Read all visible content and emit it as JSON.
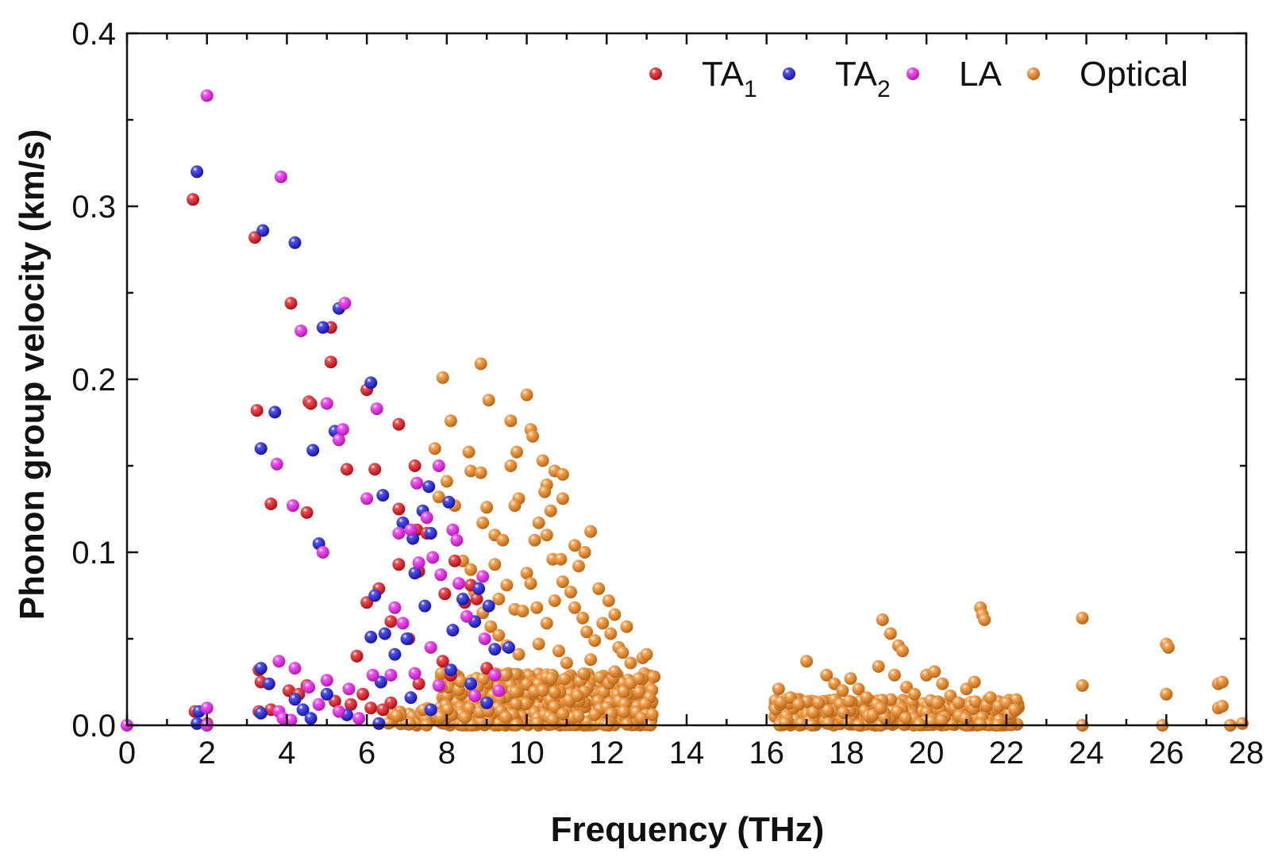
{
  "chart_data": {
    "type": "scatter",
    "title": "",
    "xlabel": "Frequency (THz)",
    "ylabel": "Phonon group velocity (km/s)",
    "xlim": [
      0,
      28
    ],
    "ylim": [
      0,
      0.4
    ],
    "x_ticks": [
      "0",
      "2",
      "4",
      "6",
      "8",
      "10",
      "12",
      "14",
      "16",
      "18",
      "20",
      "22",
      "24",
      "26",
      "28"
    ],
    "y_ticks": [
      "0.0",
      "0.1",
      "0.2",
      "0.3",
      "0.4"
    ],
    "legend_position": "top-right",
    "series": [
      {
        "name": "TA1",
        "label_main": "TA",
        "label_sub": "1",
        "color": "#e8141c",
        "points": [
          [
            1.65,
            0.304
          ],
          [
            1.7,
            0.008
          ],
          [
            3.2,
            0.282
          ],
          [
            3.25,
            0.182
          ],
          [
            3.3,
            0.032
          ],
          [
            3.35,
            0.025
          ],
          [
            3.3,
            0.008
          ],
          [
            3.6,
            0.128
          ],
          [
            4.1,
            0.244
          ],
          [
            4.5,
            0.123
          ],
          [
            4.55,
            0.187
          ],
          [
            4.6,
            0.186
          ],
          [
            5.1,
            0.23
          ],
          [
            5.1,
            0.21
          ],
          [
            5.5,
            0.148
          ],
          [
            5.75,
            0.04
          ],
          [
            6.0,
            0.194
          ],
          [
            6.0,
            0.071
          ],
          [
            6.2,
            0.148
          ],
          [
            6.3,
            0.079
          ],
          [
            6.6,
            0.06
          ],
          [
            6.8,
            0.174
          ],
          [
            6.8,
            0.093
          ],
          [
            6.8,
            0.125
          ],
          [
            7.05,
            0.05
          ],
          [
            7.2,
            0.15
          ],
          [
            7.25,
            0.113
          ],
          [
            7.3,
            0.089
          ],
          [
            7.5,
            0.111
          ],
          [
            7.9,
            0.037
          ],
          [
            7.95,
            0.076
          ],
          [
            8.2,
            0.095
          ],
          [
            8.45,
            0.071
          ],
          [
            8.6,
            0.081
          ],
          [
            8.75,
            0.073
          ],
          [
            9.0,
            0.033
          ],
          [
            4.05,
            0.02
          ],
          [
            4.5,
            0.023
          ],
          [
            5.2,
            0.014
          ],
          [
            5.6,
            0.012
          ],
          [
            6.1,
            0.01
          ],
          [
            6.6,
            0.013
          ],
          [
            7.3,
            0.024
          ],
          [
            8.1,
            0.029
          ],
          [
            2.0,
            0.001
          ],
          [
            3.6,
            0.009
          ],
          [
            4.3,
            0.018
          ],
          [
            5.9,
            0.018
          ],
          [
            6.4,
            0.009
          ]
        ]
      },
      {
        "name": "TA2",
        "label_main": "TA",
        "label_sub": "2",
        "color": "#1a1ae0",
        "points": [
          [
            1.75,
            0.32
          ],
          [
            1.8,
            0.008
          ],
          [
            1.75,
            0.001
          ],
          [
            3.35,
            0.16
          ],
          [
            3.4,
            0.286
          ],
          [
            3.35,
            0.007
          ],
          [
            3.35,
            0.033
          ],
          [
            3.7,
            0.181
          ],
          [
            4.2,
            0.279
          ],
          [
            4.2,
            0.015
          ],
          [
            4.65,
            0.159
          ],
          [
            4.8,
            0.105
          ],
          [
            4.9,
            0.23
          ],
          [
            5.2,
            0.17
          ],
          [
            5.3,
            0.241
          ],
          [
            6.1,
            0.198
          ],
          [
            6.1,
            0.051
          ],
          [
            6.2,
            0.075
          ],
          [
            6.4,
            0.133
          ],
          [
            6.45,
            0.053
          ],
          [
            6.7,
            0.041
          ],
          [
            6.9,
            0.117
          ],
          [
            7.0,
            0.05
          ],
          [
            7.15,
            0.108
          ],
          [
            7.2,
            0.088
          ],
          [
            7.4,
            0.124
          ],
          [
            7.45,
            0.069
          ],
          [
            7.55,
            0.138
          ],
          [
            7.6,
            0.111
          ],
          [
            8.05,
            0.129
          ],
          [
            8.15,
            0.055
          ],
          [
            8.1,
            0.032
          ],
          [
            8.4,
            0.073
          ],
          [
            8.7,
            0.06
          ],
          [
            8.8,
            0.079
          ],
          [
            9.05,
            0.069
          ],
          [
            9.2,
            0.044
          ],
          [
            9.55,
            0.045
          ],
          [
            3.55,
            0.024
          ],
          [
            4.4,
            0.009
          ],
          [
            5.0,
            0.018
          ],
          [
            5.5,
            0.006
          ],
          [
            6.35,
            0.025
          ],
          [
            7.1,
            0.016
          ],
          [
            7.6,
            0.009
          ],
          [
            8.6,
            0.024
          ],
          [
            9.0,
            0.013
          ],
          [
            4.6,
            0.004
          ],
          [
            6.3,
            0.001
          ]
        ]
      },
      {
        "name": "LA",
        "label_main": "LA",
        "label_sub": "",
        "color": "#f020f0",
        "points": [
          [
            0.0,
            0.0
          ],
          [
            2.0,
            0.364
          ],
          [
            2.0,
            0.01
          ],
          [
            2.0,
            0.0
          ],
          [
            3.75,
            0.151
          ],
          [
            3.8,
            0.037
          ],
          [
            3.85,
            0.317
          ],
          [
            3.8,
            0.008
          ],
          [
            4.15,
            0.127
          ],
          [
            4.2,
            0.033
          ],
          [
            4.35,
            0.228
          ],
          [
            4.55,
            0.022
          ],
          [
            4.9,
            0.1
          ],
          [
            5.0,
            0.186
          ],
          [
            5.0,
            0.026
          ],
          [
            5.3,
            0.165
          ],
          [
            5.4,
            0.171
          ],
          [
            5.45,
            0.244
          ],
          [
            5.55,
            0.021
          ],
          [
            6.0,
            0.131
          ],
          [
            6.25,
            0.183
          ],
          [
            6.15,
            0.029
          ],
          [
            6.7,
            0.068
          ],
          [
            6.8,
            0.111
          ],
          [
            6.9,
            0.059
          ],
          [
            7.1,
            0.113
          ],
          [
            7.25,
            0.14
          ],
          [
            7.3,
            0.094
          ],
          [
            7.5,
            0.12
          ],
          [
            7.6,
            0.045
          ],
          [
            7.65,
            0.097
          ],
          [
            7.8,
            0.15
          ],
          [
            7.85,
            0.087
          ],
          [
            8.15,
            0.113
          ],
          [
            8.25,
            0.107
          ],
          [
            8.3,
            0.082
          ],
          [
            8.5,
            0.063
          ],
          [
            8.9,
            0.086
          ],
          [
            8.95,
            0.05
          ],
          [
            9.2,
            0.029
          ],
          [
            3.9,
            0.004
          ],
          [
            4.8,
            0.012
          ],
          [
            5.8,
            0.004
          ],
          [
            6.6,
            0.029
          ],
          [
            7.2,
            0.03
          ],
          [
            7.8,
            0.023
          ],
          [
            8.7,
            0.017
          ],
          [
            9.3,
            0.02
          ],
          [
            4.1,
            0.003
          ],
          [
            5.3,
            0.008
          ]
        ]
      },
      {
        "name": "Optical",
        "label_main": "Optical",
        "label_sub": "",
        "color": "#f5891e",
        "points": [
          [
            7.9,
            0.201
          ],
          [
            8.1,
            0.176
          ],
          [
            7.7,
            0.16
          ],
          [
            7.8,
            0.132
          ],
          [
            8.0,
            0.141
          ],
          [
            8.2,
            0.127
          ],
          [
            8.55,
            0.158
          ],
          [
            8.6,
            0.147
          ],
          [
            8.85,
            0.209
          ],
          [
            9.05,
            0.188
          ],
          [
            8.85,
            0.146
          ],
          [
            9.0,
            0.126
          ],
          [
            9.2,
            0.11
          ],
          [
            8.9,
            0.117
          ],
          [
            9.6,
            0.176
          ],
          [
            9.75,
            0.158
          ],
          [
            9.6,
            0.15
          ],
          [
            9.8,
            0.131
          ],
          [
            9.7,
            0.127
          ],
          [
            10.0,
            0.191
          ],
          [
            10.1,
            0.171
          ],
          [
            10.15,
            0.167
          ],
          [
            10.4,
            0.153
          ],
          [
            10.5,
            0.139
          ],
          [
            10.45,
            0.135
          ],
          [
            10.7,
            0.147
          ],
          [
            10.9,
            0.145
          ],
          [
            10.9,
            0.131
          ],
          [
            10.6,
            0.124
          ],
          [
            10.3,
            0.117
          ],
          [
            10.2,
            0.107
          ],
          [
            10.5,
            0.11
          ],
          [
            10.65,
            0.096
          ],
          [
            10.85,
            0.096
          ],
          [
            11.2,
            0.104
          ],
          [
            11.45,
            0.1
          ],
          [
            11.6,
            0.112
          ],
          [
            11.3,
            0.092
          ],
          [
            11.8,
            0.079
          ],
          [
            12.05,
            0.072
          ],
          [
            12.2,
            0.064
          ],
          [
            12.5,
            0.057
          ],
          [
            12.3,
            0.045
          ],
          [
            12.9,
            0.039
          ],
          [
            13.0,
            0.041
          ],
          [
            9.4,
            0.107
          ],
          [
            9.2,
            0.093
          ],
          [
            9.5,
            0.081
          ],
          [
            9.3,
            0.073
          ],
          [
            9.7,
            0.067
          ],
          [
            9.9,
            0.066
          ],
          [
            10.0,
            0.088
          ],
          [
            10.1,
            0.082
          ],
          [
            10.25,
            0.068
          ],
          [
            10.5,
            0.059
          ],
          [
            10.7,
            0.072
          ],
          [
            10.9,
            0.083
          ],
          [
            11.1,
            0.077
          ],
          [
            11.2,
            0.068
          ],
          [
            11.4,
            0.062
          ],
          [
            11.5,
            0.054
          ],
          [
            11.7,
            0.049
          ],
          [
            11.9,
            0.059
          ],
          [
            12.1,
            0.053
          ],
          [
            12.4,
            0.042
          ],
          [
            12.6,
            0.036
          ],
          [
            8.4,
            0.095
          ],
          [
            8.6,
            0.09
          ],
          [
            8.7,
            0.077
          ],
          [
            8.9,
            0.065
          ],
          [
            9.1,
            0.057
          ],
          [
            9.3,
            0.052
          ],
          [
            9.5,
            0.046
          ],
          [
            9.8,
            0.041
          ],
          [
            10.3,
            0.047
          ],
          [
            10.8,
            0.043
          ],
          [
            11.0,
            0.036
          ],
          [
            11.6,
            0.038
          ],
          [
            12.2,
            0.031
          ],
          [
            12.8,
            0.027
          ],
          [
            16.3,
            0.021
          ],
          [
            16.6,
            0.016
          ],
          [
            16.8,
            0.012
          ],
          [
            17.0,
            0.037
          ],
          [
            17.3,
            0.013
          ],
          [
            17.5,
            0.029
          ],
          [
            17.7,
            0.024
          ],
          [
            17.9,
            0.02
          ],
          [
            18.1,
            0.027
          ],
          [
            18.3,
            0.021
          ],
          [
            18.5,
            0.016
          ],
          [
            18.8,
            0.034
          ],
          [
            18.9,
            0.061
          ],
          [
            19.1,
            0.053
          ],
          [
            19.3,
            0.046
          ],
          [
            19.4,
            0.043
          ],
          [
            19.2,
            0.029
          ],
          [
            19.5,
            0.022
          ],
          [
            19.7,
            0.018
          ],
          [
            20.0,
            0.029
          ],
          [
            20.2,
            0.031
          ],
          [
            20.4,
            0.024
          ],
          [
            20.6,
            0.017
          ],
          [
            20.8,
            0.013
          ],
          [
            21.0,
            0.021
          ],
          [
            21.2,
            0.025
          ],
          [
            21.35,
            0.068
          ],
          [
            21.4,
            0.064
          ],
          [
            21.45,
            0.061
          ],
          [
            21.6,
            0.016
          ],
          [
            21.8,
            0.011
          ],
          [
            22.0,
            0.013
          ],
          [
            22.2,
            0.009
          ],
          [
            23.9,
            0.062
          ],
          [
            23.9,
            0.023
          ],
          [
            23.9,
            0.0
          ],
          [
            26.0,
            0.047
          ],
          [
            26.05,
            0.045
          ],
          [
            26.0,
            0.018
          ],
          [
            25.9,
            0.0
          ],
          [
            27.3,
            0.024
          ],
          [
            27.4,
            0.025
          ],
          [
            27.3,
            0.01
          ],
          [
            27.4,
            0.011
          ],
          [
            27.9,
            0.001
          ],
          [
            27.6,
            0.0
          ]
        ],
        "cluster_regions": [
          {
            "x": [
              7.8,
              13.2
            ],
            "y": [
              0.0,
              0.03
            ],
            "count": 650
          },
          {
            "x": [
              16.2,
              22.3
            ],
            "y": [
              0.0,
              0.015
            ],
            "count": 420
          },
          {
            "x": [
              6.5,
              9.8
            ],
            "y": [
              0.0,
              0.01
            ],
            "count": 80
          }
        ]
      }
    ]
  }
}
